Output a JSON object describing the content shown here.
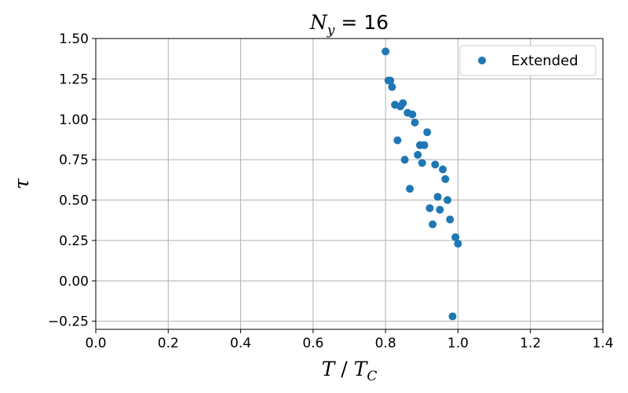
{
  "chart_data": {
    "type": "scatter",
    "title": {
      "var": "N",
      "sub": "y",
      "rest": " = 16"
    },
    "xlabel": {
      "a": "T",
      "sep": " / ",
      "b": "T",
      "b_sub": "C"
    },
    "ylabel": "τ",
    "xlim": [
      0.0,
      1.4
    ],
    "ylim": [
      -0.3,
      1.5
    ],
    "xticks": [
      0.0,
      0.2,
      0.4,
      0.6,
      0.8,
      1.0,
      1.2,
      1.4
    ],
    "xtick_labels": [
      "0.0",
      "0.2",
      "0.4",
      "0.6",
      "0.8",
      "1.0",
      "1.2",
      "1.4"
    ],
    "yticks": [
      -0.25,
      0.0,
      0.25,
      0.5,
      0.75,
      1.0,
      1.25,
      1.5
    ],
    "ytick_labels": [
      "−0.25",
      "0.00",
      "0.25",
      "0.50",
      "0.75",
      "1.00",
      "1.25",
      "1.50"
    ],
    "grid": true,
    "legend_position": "top-right",
    "series": [
      {
        "name": "Extended",
        "color": "#1f77b4",
        "points": [
          {
            "x": 0.8,
            "y": 1.42
          },
          {
            "x": 0.808,
            "y": 1.24
          },
          {
            "x": 0.813,
            "y": 1.24
          },
          {
            "x": 0.818,
            "y": 1.2
          },
          {
            "x": 0.826,
            "y": 1.09
          },
          {
            "x": 0.833,
            "y": 0.87
          },
          {
            "x": 0.841,
            "y": 1.08
          },
          {
            "x": 0.848,
            "y": 1.1
          },
          {
            "x": 0.853,
            "y": 0.75
          },
          {
            "x": 0.861,
            "y": 1.04
          },
          {
            "x": 0.867,
            "y": 0.57
          },
          {
            "x": 0.874,
            "y": 1.03
          },
          {
            "x": 0.881,
            "y": 0.98
          },
          {
            "x": 0.889,
            "y": 0.78
          },
          {
            "x": 0.895,
            "y": 0.84
          },
          {
            "x": 0.901,
            "y": 0.73
          },
          {
            "x": 0.907,
            "y": 0.84
          },
          {
            "x": 0.915,
            "y": 0.92
          },
          {
            "x": 0.922,
            "y": 0.45
          },
          {
            "x": 0.93,
            "y": 0.35
          },
          {
            "x": 0.937,
            "y": 0.72
          },
          {
            "x": 0.944,
            "y": 0.52
          },
          {
            "x": 0.95,
            "y": 0.44
          },
          {
            "x": 0.958,
            "y": 0.69
          },
          {
            "x": 0.965,
            "y": 0.63
          },
          {
            "x": 0.971,
            "y": 0.5
          },
          {
            "x": 0.978,
            "y": 0.38
          },
          {
            "x": 0.985,
            "y": -0.22
          },
          {
            "x": 0.993,
            "y": 0.27
          },
          {
            "x": 1.0,
            "y": 0.23
          }
        ]
      }
    ]
  }
}
